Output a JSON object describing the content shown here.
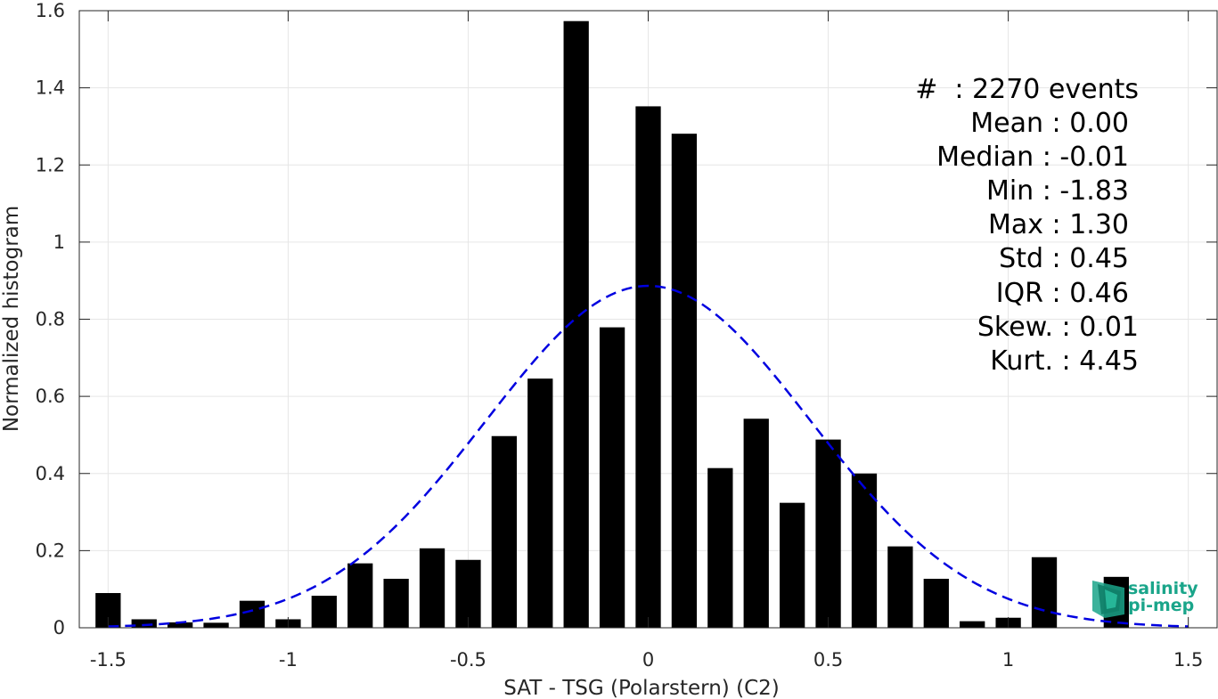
{
  "chart_data": {
    "type": "bar",
    "xlabel": "SAT - TSG (Polarstern) (C2)",
    "ylabel": "Normalized histogram",
    "xlim": [
      -1.58,
      1.58
    ],
    "ylim": [
      0,
      1.6
    ],
    "xticks": [
      -1.5,
      -1,
      -0.5,
      0,
      0.5,
      1,
      1.5
    ],
    "xtick_labels": [
      "-1.5",
      "-1",
      "-0.5",
      "0",
      "0.5",
      "1",
      "1.5"
    ],
    "yticks": [
      0,
      0.2,
      0.4,
      0.6,
      0.8,
      1,
      1.2,
      1.4,
      1.6
    ],
    "ytick_labels": [
      "0",
      "0.2",
      "0.4",
      "0.6",
      "0.8",
      "1",
      "1.2",
      "1.4",
      "1.6"
    ],
    "grid": true,
    "bar_width": 0.07,
    "bar_color": "#000000",
    "bins": [
      {
        "x": -1.5,
        "y": 0.09
      },
      {
        "x": -1.4,
        "y": 0.022
      },
      {
        "x": -1.3,
        "y": 0.014
      },
      {
        "x": -1.2,
        "y": 0.013
      },
      {
        "x": -1.1,
        "y": 0.07
      },
      {
        "x": -1.0,
        "y": 0.022
      },
      {
        "x": -0.9,
        "y": 0.083
      },
      {
        "x": -0.8,
        "y": 0.167
      },
      {
        "x": -0.7,
        "y": 0.127
      },
      {
        "x": -0.6,
        "y": 0.206
      },
      {
        "x": -0.5,
        "y": 0.176
      },
      {
        "x": -0.4,
        "y": 0.497
      },
      {
        "x": -0.3,
        "y": 0.646
      },
      {
        "x": -0.2,
        "y": 1.573
      },
      {
        "x": -0.1,
        "y": 0.779
      },
      {
        "x": 0.0,
        "y": 1.352
      },
      {
        "x": 0.1,
        "y": 1.281
      },
      {
        "x": 0.2,
        "y": 0.414
      },
      {
        "x": 0.3,
        "y": 0.542
      },
      {
        "x": 0.4,
        "y": 0.324
      },
      {
        "x": 0.5,
        "y": 0.488
      },
      {
        "x": 0.6,
        "y": 0.4
      },
      {
        "x": 0.7,
        "y": 0.211
      },
      {
        "x": 0.8,
        "y": 0.127
      },
      {
        "x": 0.9,
        "y": 0.017
      },
      {
        "x": 1.0,
        "y": 0.026
      },
      {
        "x": 1.1,
        "y": 0.183
      },
      {
        "x": 1.2,
        "y": 0.0
      },
      {
        "x": 1.3,
        "y": 0.132
      }
    ],
    "fit_curve": {
      "type": "gaussian",
      "mean": 0.0,
      "std": 0.45,
      "x_range": [
        -1.5,
        1.5
      ],
      "style": "dashed",
      "color": "#0000e0"
    },
    "annotations": [
      "#  : 2270 events",
      "Mean : 0.00",
      "Median : -0.01",
      "Min : -1.83",
      "Max : 1.30",
      "Std : 0.45",
      "IQR : 0.46",
      "Skew. : 0.01",
      "Kurt. : 4.45"
    ]
  },
  "logo": {
    "line1": "salinity",
    "line2": "pi-mep",
    "color": "#1aa58a"
  }
}
